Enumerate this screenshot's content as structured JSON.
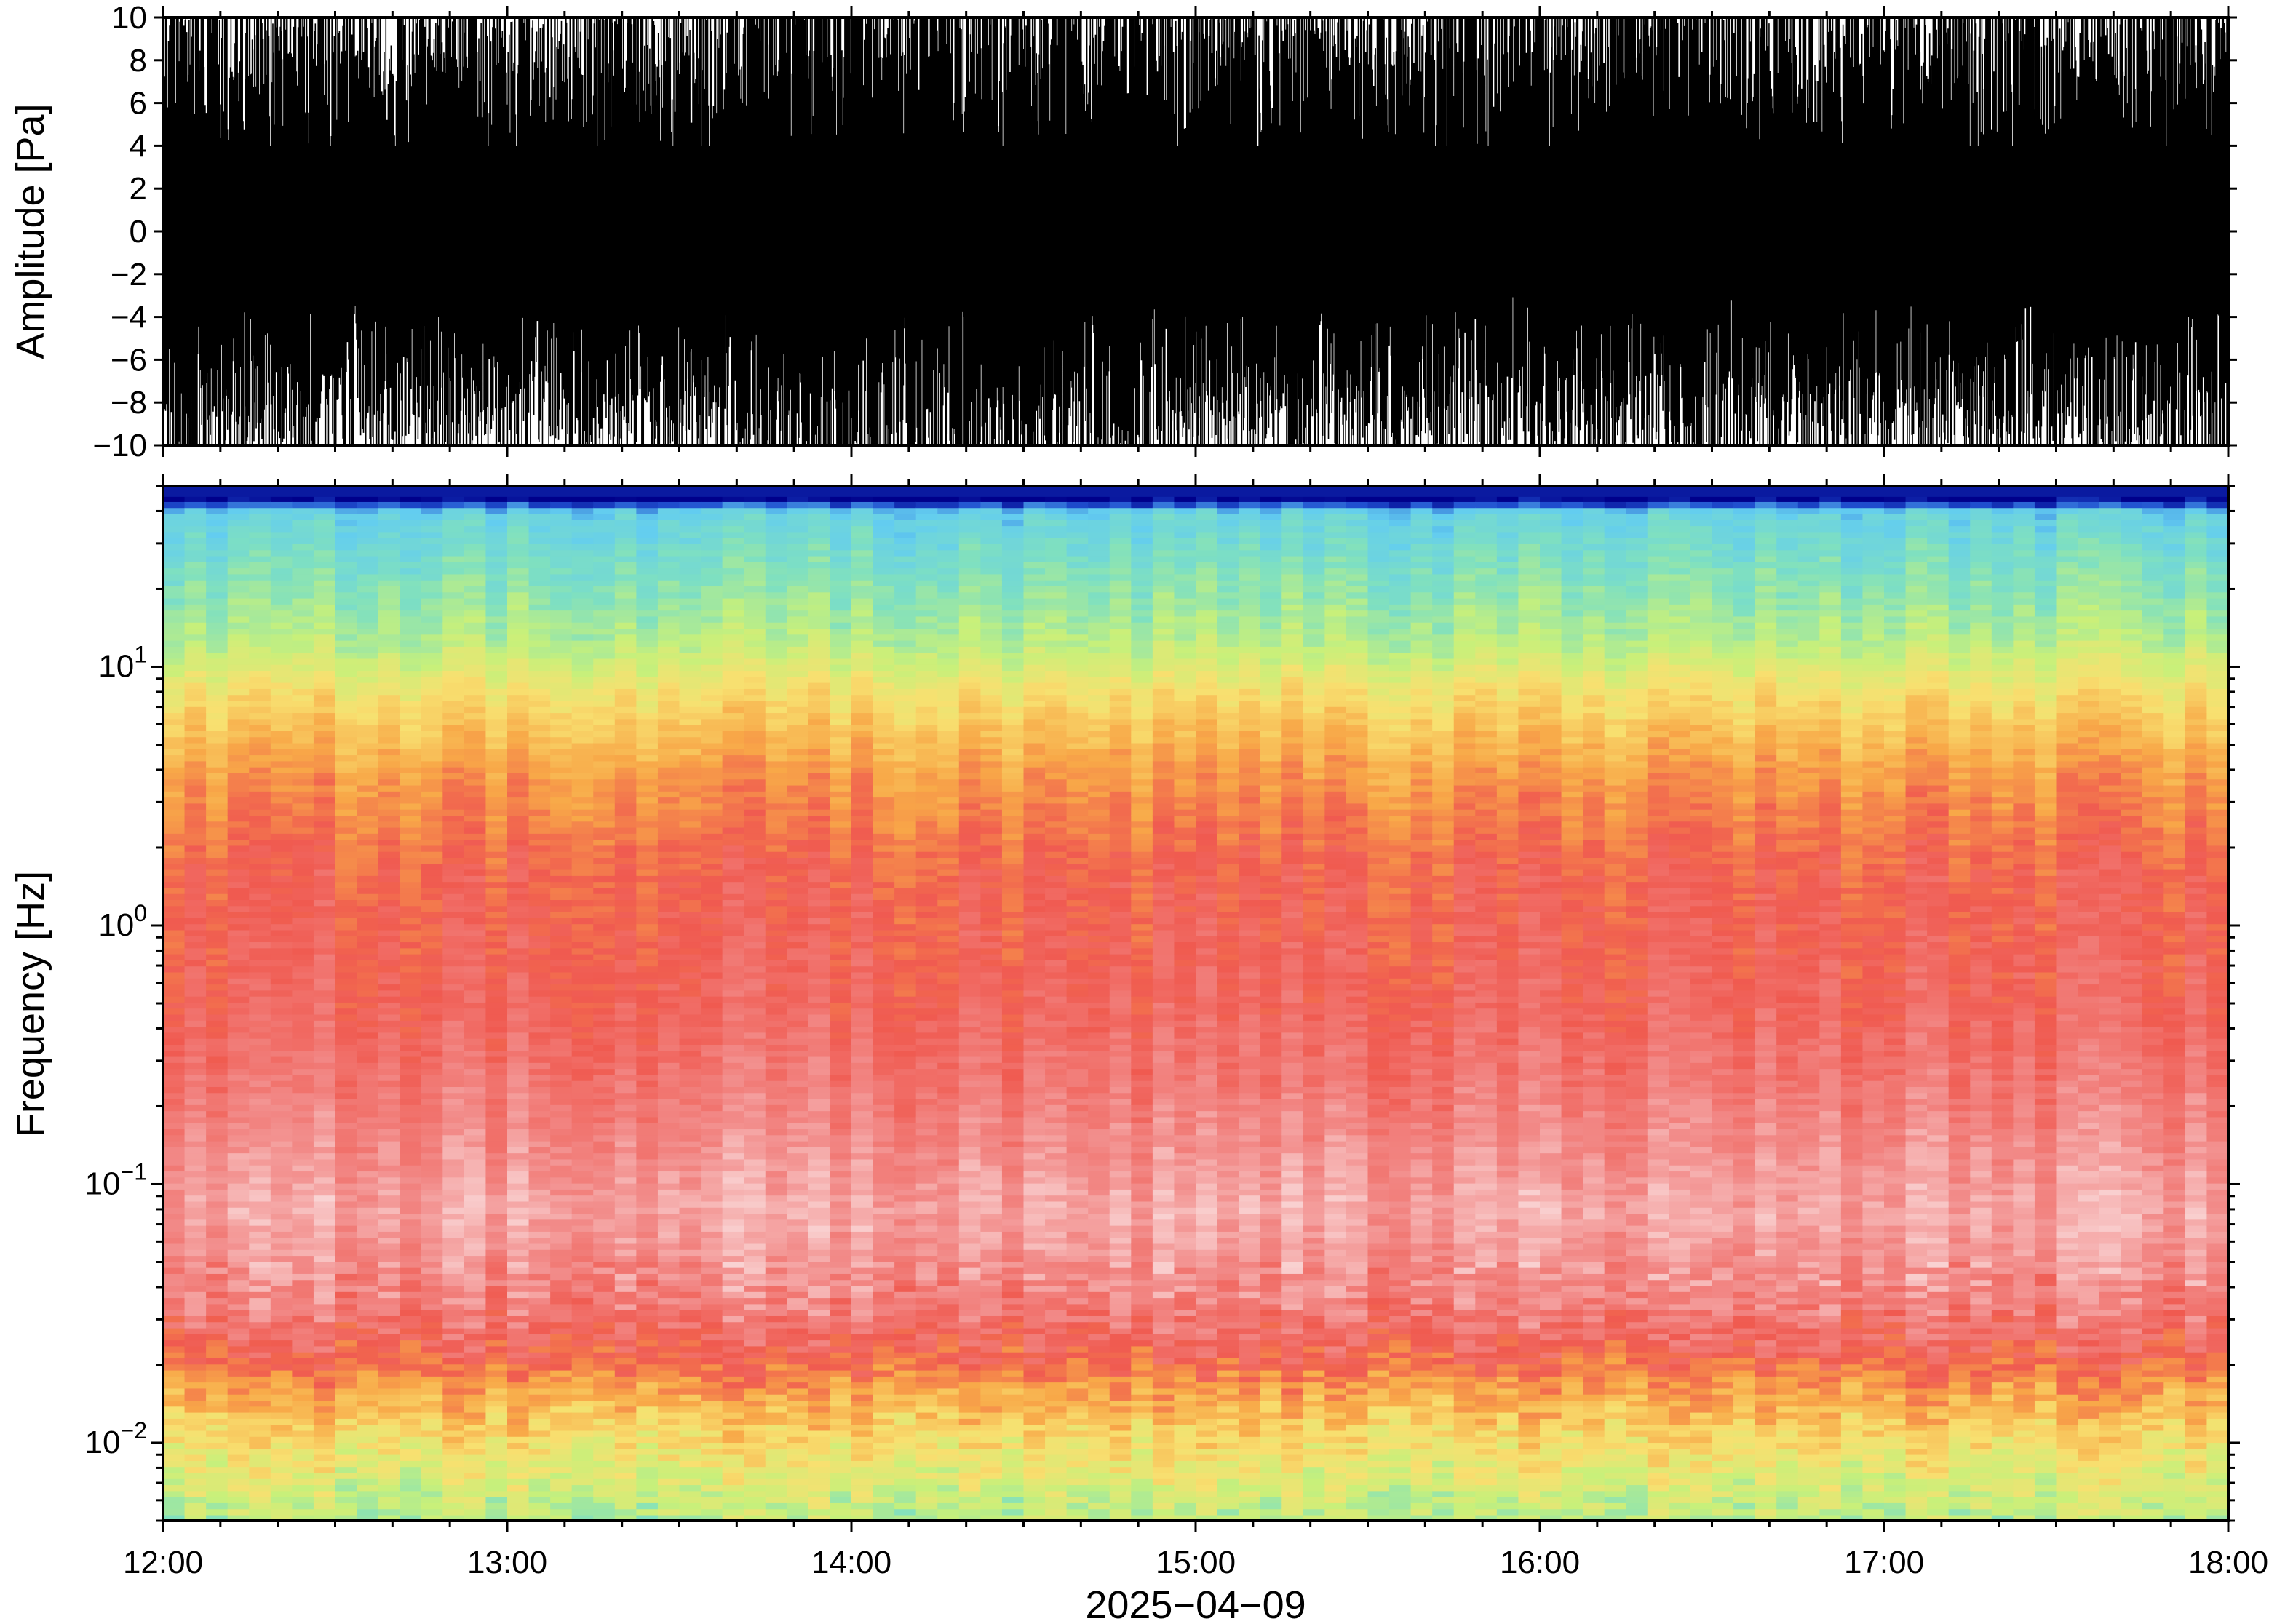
{
  "chart_data": [
    {
      "type": "line",
      "ylabel": "Amplitude [Pa]",
      "ylim": [
        -10,
        10
      ],
      "yticks": [
        10,
        8,
        6,
        4,
        2,
        0,
        -2,
        -4,
        -6,
        -8,
        -10
      ],
      "ytick_labels": [
        "10",
        "8",
        "6",
        "4",
        "2",
        "0",
        "−2",
        "−4",
        "−6",
        "−8",
        "−10"
      ],
      "xlim": [
        "2025-04-09 12:00",
        "2025-04-09 18:00"
      ],
      "series": [
        {
          "color": "#000000",
          "envelope_x_hours": [
            12.0,
            12.5,
            13.0,
            13.5,
            14.0,
            14.5,
            15.0,
            15.5,
            16.0,
            16.5,
            17.0,
            17.5,
            18.0
          ],
          "envelope_upper": [
            10,
            10,
            10,
            10,
            10,
            10,
            10,
            10,
            10,
            10,
            10,
            10,
            10
          ],
          "envelope_lower": [
            -9,
            -8,
            -8.5,
            -8,
            -10,
            -9,
            -8,
            -8,
            -8,
            -9,
            -8,
            -8.5,
            -9
          ],
          "typical_excursion": [
            7,
            6,
            5,
            6,
            10,
            7,
            6,
            6,
            7,
            7,
            6,
            6,
            7
          ]
        }
      ]
    },
    {
      "type": "heatmap",
      "ylabel": "Frequency [Hz]",
      "xlabel": "2025−04−09",
      "yscale": "log",
      "ylim": [
        0.005,
        50
      ],
      "yticks": [
        10,
        1,
        0.1,
        0.01
      ],
      "ytick_labels": [
        {
          "base": "10",
          "exp": "1"
        },
        {
          "base": "10",
          "exp": "0"
        },
        {
          "base": "10",
          "exp": "−1"
        },
        {
          "base": "10",
          "exp": "−2"
        }
      ],
      "xlim": [
        "2025-04-09 12:00",
        "2025-04-09 18:00"
      ],
      "xticks": [
        "12:00",
        "13:00",
        "14:00",
        "15:00",
        "16:00",
        "17:00",
        "18:00"
      ],
      "colormap": [
        "#00008b",
        "#2050d0",
        "#63cdf0",
        "#7fe0c0",
        "#c8f07a",
        "#f8e070",
        "#f8a848",
        "#f05a50",
        "#f28a88",
        "#fadada"
      ],
      "power_profile_by_log10_freq": [
        {
          "log10_f": 1.65,
          "level": 0.0
        },
        {
          "log10_f": 1.6,
          "level": 0.25
        },
        {
          "log10_f": 1.4,
          "level": 0.32
        },
        {
          "log10_f": 1.1,
          "level": 0.42
        },
        {
          "log10_f": 0.9,
          "level": 0.55
        },
        {
          "log10_f": 0.6,
          "level": 0.68
        },
        {
          "log10_f": 0.2,
          "level": 0.77
        },
        {
          "log10_f": -0.3,
          "level": 0.8
        },
        {
          "log10_f": -0.7,
          "level": 0.86
        },
        {
          "log10_f": -1.1,
          "level": 0.93
        },
        {
          "log10_f": -1.45,
          "level": 0.87
        },
        {
          "log10_f": -1.65,
          "level": 0.78
        },
        {
          "log10_f": -1.8,
          "level": 0.67
        },
        {
          "log10_f": -1.95,
          "level": 0.58
        },
        {
          "log10_f": -2.15,
          "level": 0.48
        },
        {
          "log10_f": -2.3,
          "level": 0.42
        }
      ]
    }
  ]
}
